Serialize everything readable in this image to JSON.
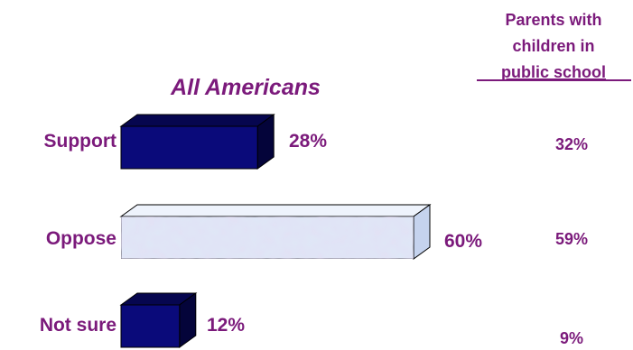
{
  "chart_data": {
    "type": "bar",
    "orientation": "horizontal",
    "categories": [
      "Support",
      "Oppose",
      "Not sure"
    ],
    "series": [
      {
        "name": "All Americans",
        "values": [
          28,
          60,
          12
        ],
        "labels": [
          "28%",
          "60%",
          "12%"
        ]
      },
      {
        "name_lines": [
          "Parents with",
          "children in",
          "public school"
        ],
        "values": [
          32,
          59,
          9
        ],
        "labels": [
          "32%",
          "59%",
          "9%"
        ]
      }
    ],
    "title": "All Americans",
    "colors": {
      "text": "#7b1a7b",
      "dark_bar": "#0a0a7a",
      "dark_bar_top": "#06064f",
      "dark_bar_side": "#04043a",
      "light_bar": "#dfe8f8",
      "light_bar_top": "#eef3fc",
      "light_bar_side": "#c5d3ee",
      "outline": "#000000"
    },
    "bar_styles": [
      "dark",
      "light",
      "dark"
    ]
  }
}
